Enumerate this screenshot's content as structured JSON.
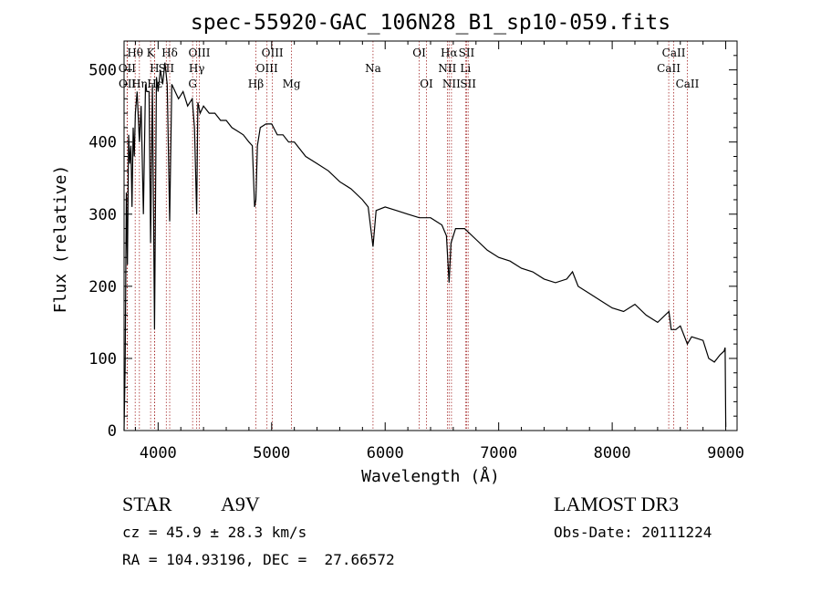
{
  "chart_data": {
    "type": "line",
    "title": "spec-55920-GAC_106N28_B1_sp10-059.fits",
    "xlabel": "Wavelength (Å)",
    "ylabel": "Flux (relative)",
    "xlim": [
      3700,
      9100
    ],
    "ylim": [
      0,
      540
    ],
    "xticks": [
      4000,
      5000,
      6000,
      7000,
      8000,
      9000
    ],
    "yticks": [
      0,
      100,
      200,
      300,
      400,
      500
    ],
    "series": [
      {
        "name": "flux",
        "x": [
          3700,
          3710,
          3720,
          3730,
          3740,
          3750,
          3760,
          3770,
          3780,
          3790,
          3800,
          3815,
          3835,
          3850,
          3870,
          3889,
          3900,
          3920,
          3934,
          3950,
          3968,
          3985,
          4000,
          4020,
          4040,
          4060,
          4080,
          4102,
          4120,
          4150,
          4180,
          4220,
          4260,
          4300,
          4320,
          4340,
          4350,
          4370,
          4400,
          4450,
          4500,
          4550,
          4600,
          4650,
          4700,
          4750,
          4800,
          4830,
          4850,
          4861,
          4875,
          4900,
          4950,
          5000,
          5050,
          5100,
          5150,
          5200,
          5250,
          5300,
          5400,
          5500,
          5600,
          5700,
          5800,
          5850,
          5893,
          5920,
          6000,
          6100,
          6200,
          6300,
          6400,
          6500,
          6540,
          6563,
          6580,
          6620,
          6700,
          6800,
          6900,
          7000,
          7100,
          7200,
          7300,
          7400,
          7500,
          7600,
          7650,
          7700,
          7800,
          7900,
          8000,
          8100,
          8200,
          8300,
          8400,
          8500,
          8520,
          8560,
          8600,
          8662,
          8700,
          8800,
          8850,
          8900,
          8950,
          8985,
          8995,
          9000
        ],
        "y": [
          0,
          90,
          330,
          230,
          410,
          370,
          395,
          310,
          420,
          380,
          440,
          470,
          400,
          450,
          300,
          480,
          470,
          470,
          260,
          480,
          140,
          490,
          470,
          500,
          480,
          510,
          480,
          290,
          480,
          470,
          460,
          470,
          450,
          460,
          420,
          300,
          455,
          440,
          450,
          440,
          440,
          430,
          430,
          420,
          415,
          410,
          400,
          395,
          310,
          320,
          395,
          420,
          425,
          425,
          410,
          410,
          400,
          400,
          390,
          380,
          370,
          360,
          345,
          335,
          320,
          310,
          255,
          305,
          310,
          305,
          300,
          295,
          295,
          285,
          270,
          205,
          260,
          280,
          280,
          265,
          250,
          240,
          235,
          225,
          220,
          210,
          205,
          210,
          220,
          200,
          190,
          180,
          170,
          165,
          175,
          160,
          150,
          165,
          140,
          140,
          145,
          120,
          130,
          125,
          100,
          95,
          105,
          110,
          115,
          5
        ]
      }
    ],
    "spectral_lines": [
      {
        "label": "Hθ",
        "wavelength": 3798,
        "row": 1
      },
      {
        "label": "OII",
        "wavelength": 3727,
        "row": 2
      },
      {
        "label": "OII",
        "wavelength": 3729,
        "row": 3
      },
      {
        "label": "Hη",
        "wavelength": 3835,
        "row": 3
      },
      {
        "label": "K",
        "wavelength": 3934,
        "row": 1
      },
      {
        "label": "H",
        "wavelength": 3968,
        "row": 2
      },
      {
        "label": "Hε",
        "wavelength": 3970,
        "row": 3
      },
      {
        "label": "Hδ",
        "wavelength": 4102,
        "row": 1
      },
      {
        "label": "SII",
        "wavelength": 4072,
        "row": 2
      },
      {
        "label": "OIII",
        "wavelength": 4363,
        "row": 1
      },
      {
        "label": "Hγ",
        "wavelength": 4340,
        "row": 2
      },
      {
        "label": "G",
        "wavelength": 4304,
        "row": 3
      },
      {
        "label": "Hβ",
        "wavelength": 4861,
        "row": 3
      },
      {
        "label": "OIII",
        "wavelength": 5007,
        "row": 1
      },
      {
        "label": "OIII",
        "wavelength": 4959,
        "row": 2
      },
      {
        "label": "Mg",
        "wavelength": 5175,
        "row": 3
      },
      {
        "label": "Na",
        "wavelength": 5893,
        "row": 2
      },
      {
        "label": "OI",
        "wavelength": 6300,
        "row": 1
      },
      {
        "label": "OI",
        "wavelength": 6364,
        "row": 3
      },
      {
        "label": "Hα",
        "wavelength": 6563,
        "row": 1
      },
      {
        "label": "NII",
        "wavelength": 6548,
        "row": 2
      },
      {
        "label": "NII",
        "wavelength": 6584,
        "row": 3
      },
      {
        "label": "SII",
        "wavelength": 6717,
        "row": 1
      },
      {
        "label": "Li",
        "wavelength": 6708,
        "row": 2
      },
      {
        "label": "SII",
        "wavelength": 6731,
        "row": 3
      },
      {
        "label": "CaII",
        "wavelength": 8542,
        "row": 1
      },
      {
        "label": "CaII",
        "wavelength": 8498,
        "row": 2
      },
      {
        "label": "CaII",
        "wavelength": 8662,
        "row": 3
      }
    ]
  },
  "info": {
    "object_type": "STAR",
    "subclass": "A9V",
    "survey": "LAMOST DR3",
    "redshift": "cz = 45.9 ± 28.3 km/s",
    "obs_date": "Obs-Date: 20111224",
    "coords": "RA = 104.93196, DEC =  27.66572"
  },
  "colors": {
    "line": "#000000",
    "marker": "#a52a2a",
    "background": "#ffffff"
  }
}
